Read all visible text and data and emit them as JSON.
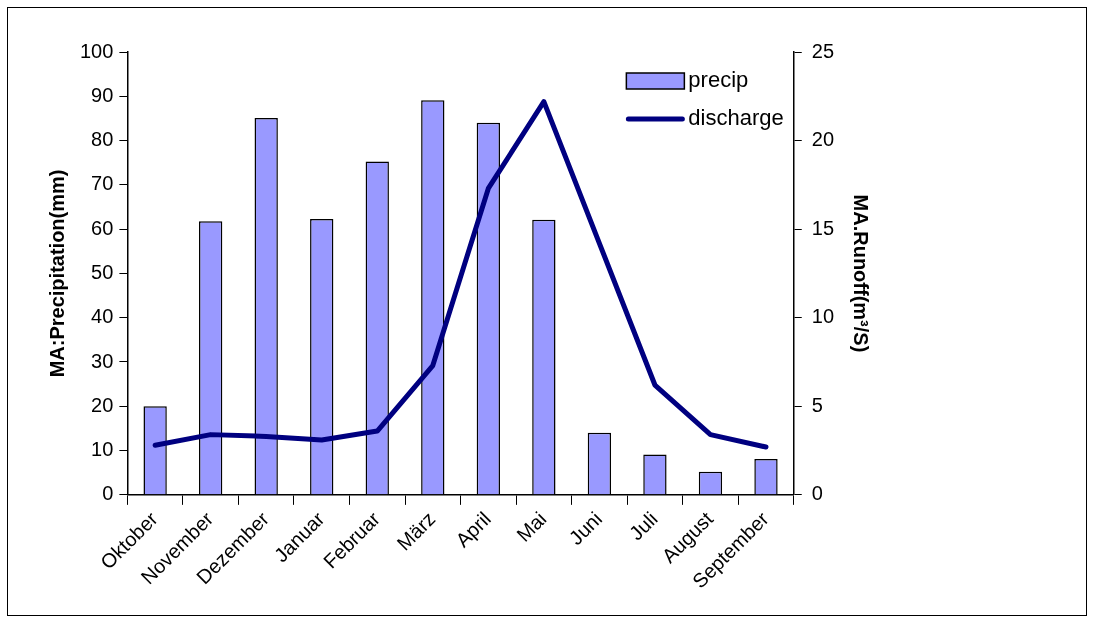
{
  "chart_data": {
    "type": "bar",
    "ylabel": "MA:Precipitation(mm)",
    "y2label": "MA.Runoff(m³/S)",
    "categories": [
      "Oktober",
      "November",
      "Dezember",
      "Januar",
      "Februar",
      "März",
      "April",
      "Mai",
      "Juni",
      "Juli",
      "August",
      "September"
    ],
    "series": [
      {
        "name": "precip",
        "color": "#9999ff",
        "values": [
          20,
          61.8,
          85.1,
          62.3,
          75.3,
          89.1,
          84,
          62.1,
          14,
          9.1,
          5.2,
          8.1
        ]
      },
      {
        "name": "discharge",
        "type": "line",
        "axis": "y2",
        "color": "#000080",
        "values": [
          2.8,
          3.4,
          3.3,
          3.1,
          3.6,
          7.3,
          17.3,
          22.2,
          14.2,
          6.2,
          3.4,
          2.7
        ]
      }
    ],
    "ylim": [
      0,
      100
    ],
    "yticks": [
      0,
      10,
      20,
      30,
      40,
      50,
      60,
      70,
      80,
      90,
      100
    ],
    "y2lim": [
      0,
      25
    ],
    "y2ticks": [
      0,
      5,
      10,
      15,
      20,
      25
    ],
    "legend": "top right",
    "grid": false,
    "marker": "none"
  }
}
